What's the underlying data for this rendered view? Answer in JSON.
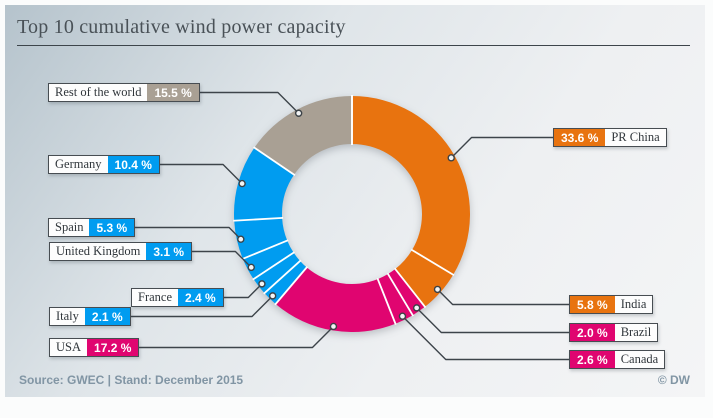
{
  "title": "Top 10 cumulative wind power capacity",
  "footer": {
    "source": "Source: GWEC | Stand: December 2015",
    "credit": "© DW"
  },
  "chart_data": {
    "type": "pie",
    "subtype": "donut",
    "title": "Top 10 cumulative wind power capacity",
    "unit": "%",
    "direction": "clockwise",
    "start_angle_deg": 0,
    "legend_position": "callout-labels",
    "total": 100,
    "segments": [
      {
        "label": "PR China",
        "value": 33.6,
        "value_label": "33.6 %",
        "color": "#e8730f",
        "side": "right"
      },
      {
        "label": "India",
        "value": 5.8,
        "value_label": "5.8 %",
        "color": "#e8730f",
        "side": "right"
      },
      {
        "label": "Brazil",
        "value": 2.0,
        "value_label": "2.0 %",
        "color": "#e00570",
        "side": "right"
      },
      {
        "label": "Canada",
        "value": 2.6,
        "value_label": "2.6 %",
        "color": "#e00570",
        "side": "right"
      },
      {
        "label": "USA",
        "value": 17.2,
        "value_label": "17.2 %",
        "color": "#e00570",
        "side": "left"
      },
      {
        "label": "Italy",
        "value": 2.1,
        "value_label": "2.1 %",
        "color": "#009cf0",
        "side": "left"
      },
      {
        "label": "France",
        "value": 2.4,
        "value_label": "2.4 %",
        "color": "#009cf0",
        "side": "left"
      },
      {
        "label": "United Kingdom",
        "value": 3.1,
        "value_label": "3.1 %",
        "color": "#009cf0",
        "side": "left"
      },
      {
        "label": "Spain",
        "value": 5.3,
        "value_label": "5.3 %",
        "color": "#009cf0",
        "side": "left"
      },
      {
        "label": "Germany",
        "value": 10.4,
        "value_label": "10.4 %",
        "color": "#009cf0",
        "side": "left"
      },
      {
        "label": "Rest of the world",
        "value": 15.5,
        "value_label": "15.5 %",
        "color": "#a9a094",
        "side": "left"
      }
    ]
  }
}
